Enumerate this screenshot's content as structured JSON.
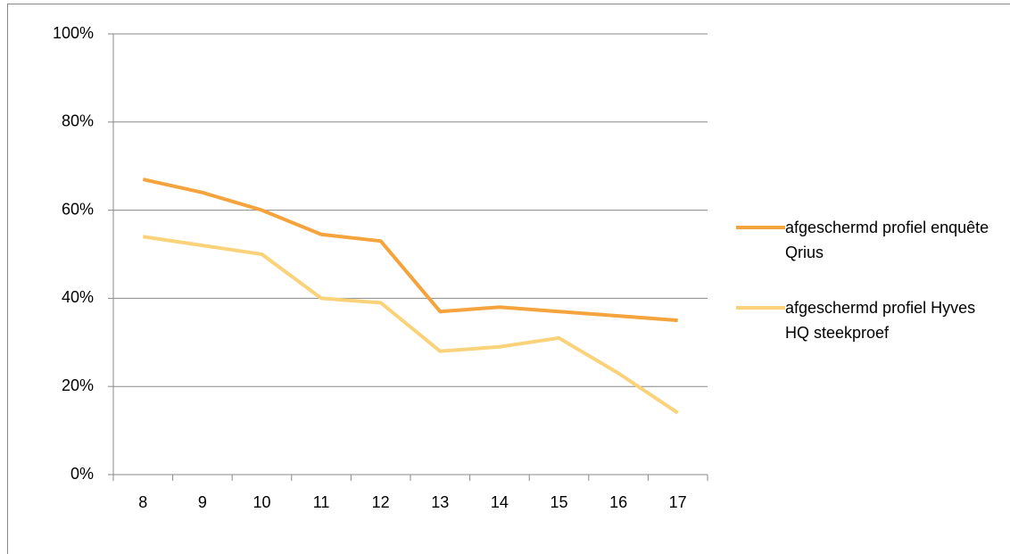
{
  "chart_data": {
    "type": "line",
    "categories": [
      "8",
      "9",
      "10",
      "11",
      "12",
      "13",
      "14",
      "15",
      "16",
      "17"
    ],
    "series": [
      {
        "name": "afgeschermd profiel enquête Qrius",
        "color": "#f5a33c",
        "values": [
          67,
          64,
          60,
          54.5,
          53,
          37,
          38,
          37,
          36,
          35
        ]
      },
      {
        "name": "afgeschermd profiel Hyves HQ steekproef",
        "color": "#fad27a",
        "values": [
          54,
          52,
          50,
          40,
          39,
          28,
          29,
          31,
          23,
          14
        ]
      }
    ],
    "ylim": [
      0,
      100
    ],
    "yticks": [
      {
        "value": 0,
        "label": "0%"
      },
      {
        "value": 20,
        "label": "20%"
      },
      {
        "value": 40,
        "label": "40%"
      },
      {
        "value": 60,
        "label": "60%"
      },
      {
        "value": 80,
        "label": "80%"
      },
      {
        "value": 100,
        "label": "100%"
      }
    ],
    "grid": true,
    "legend": "right"
  }
}
